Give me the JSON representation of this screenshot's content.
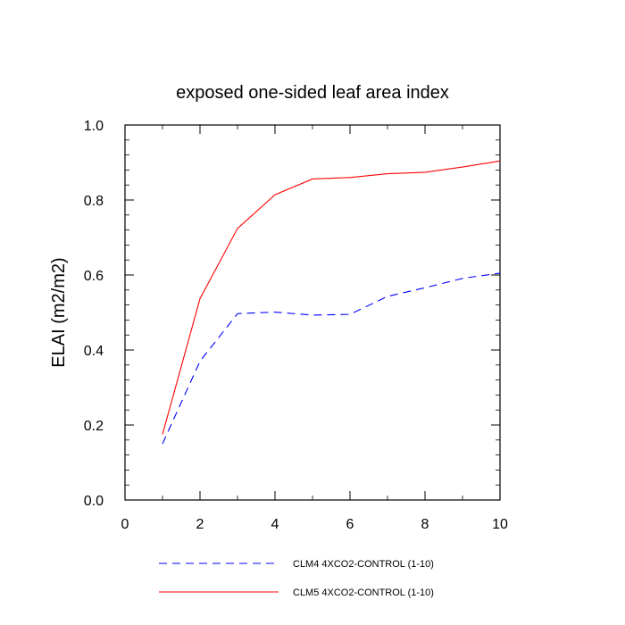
{
  "chart_data": {
    "type": "line",
    "title": "exposed one-sided leaf area index",
    "xlabel": "",
    "ylabel": "ELAI  (m2/m2)",
    "xlim": [
      0,
      10
    ],
    "ylim": [
      0.0,
      1.0
    ],
    "x_ticks": [
      0,
      2,
      4,
      6,
      8,
      10
    ],
    "x_tick_labels": [
      "0",
      "2",
      "4",
      "6",
      "8",
      "10"
    ],
    "y_ticks": [
      0.0,
      0.2,
      0.4,
      0.6,
      0.8,
      1.0
    ],
    "y_tick_labels": [
      "0.0",
      "0.2",
      "0.4",
      "0.6",
      "0.8",
      "1.0"
    ],
    "grid": false,
    "legend_position": "bottom",
    "x": [
      1,
      2,
      3,
      4,
      5,
      6,
      7,
      8,
      9,
      10
    ],
    "series": [
      {
        "name": "CLM4 4XCO2-CONTROL (1-10)",
        "color": "#0000ff",
        "line_style": "dashed",
        "values": [
          0.15,
          0.37,
          0.497,
          0.501,
          0.493,
          0.495,
          0.543,
          0.566,
          0.591,
          0.605
        ]
      },
      {
        "name": "CLM5 4XCO2-CONTROL (1-10)",
        "color": "#ff0000",
        "line_style": "solid",
        "values": [
          0.175,
          0.537,
          0.724,
          0.814,
          0.856,
          0.86,
          0.87,
          0.874,
          0.888,
          0.904
        ]
      }
    ]
  }
}
